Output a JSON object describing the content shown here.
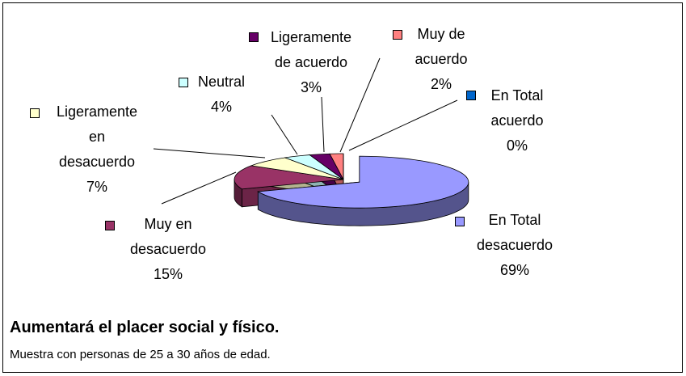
{
  "chart_data": {
    "type": "pie3d",
    "title": "Aumentará el placer social y físico.",
    "subtitle": "Muestra con personas de 25 a 30 años de edad.",
    "categories": [
      "En Total\ndesacuerdo",
      "Muy en\ndesacuerdo",
      "Ligeramente\nen\ndesacuerdo",
      "Neutral",
      "Ligeramente\nde acuerdo",
      "Muy de\nacuerdo",
      "En Total\nacuerdo"
    ],
    "values": [
      69,
      15,
      7,
      4,
      3,
      2,
      0
    ],
    "value_labels": [
      "69%",
      "15%",
      "7%",
      "4%",
      "3%",
      "2%",
      "0%"
    ],
    "colors": [
      "#9999ff",
      "#993366",
      "#ffffcc",
      "#ccffff",
      "#660066",
      "#ff8080",
      "#0066cc"
    ],
    "exploded": 0
  }
}
